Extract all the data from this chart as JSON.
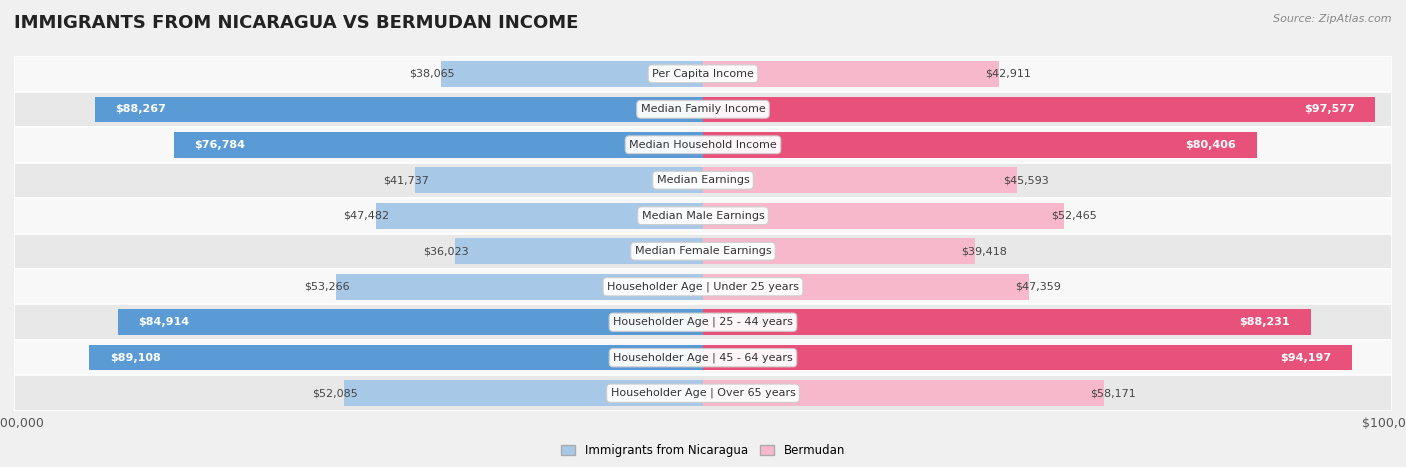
{
  "title": "IMMIGRANTS FROM NICARAGUA VS BERMUDAN INCOME",
  "source": "Source: ZipAtlas.com",
  "categories": [
    "Per Capita Income",
    "Median Family Income",
    "Median Household Income",
    "Median Earnings",
    "Median Male Earnings",
    "Median Female Earnings",
    "Householder Age | Under 25 years",
    "Householder Age | 25 - 44 years",
    "Householder Age | 45 - 64 years",
    "Householder Age | Over 65 years"
  ],
  "nicaragua_values": [
    38065,
    88267,
    76784,
    41737,
    47482,
    36023,
    53266,
    84914,
    89108,
    52085
  ],
  "bermudan_values": [
    42911,
    97577,
    80406,
    45593,
    52465,
    39418,
    47359,
    88231,
    94197,
    58171
  ],
  "nicaragua_labels": [
    "$38,065",
    "$88,267",
    "$76,784",
    "$41,737",
    "$47,482",
    "$36,023",
    "$53,266",
    "$84,914",
    "$89,108",
    "$52,085"
  ],
  "bermudan_labels": [
    "$42,911",
    "$97,577",
    "$80,406",
    "$45,593",
    "$52,465",
    "$39,418",
    "$47,359",
    "$88,231",
    "$94,197",
    "$58,171"
  ],
  "nicaragua_color_light": "#a8c8e8",
  "nicaragua_color_dark": "#5b9bd5",
  "bermudan_color_light": "#f8b8cc",
  "bermudan_color_dark": "#e8527a",
  "nicaragua_inside_threshold": 60000,
  "bermudan_inside_threshold": 60000,
  "max_value": 100000,
  "background_color": "#f0f0f0",
  "row_bg_light": "#f8f8f8",
  "row_bg_dark": "#e8e8e8",
  "bar_height": 0.72,
  "title_fontsize": 13,
  "label_fontsize": 8,
  "tick_fontsize": 9,
  "category_fontsize": 8
}
